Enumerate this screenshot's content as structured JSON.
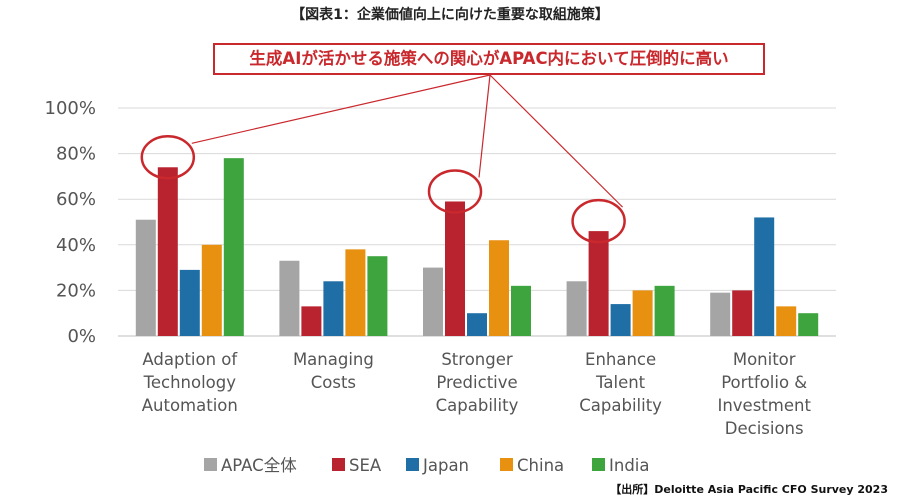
{
  "title": "【図表1：企業価値向上に向けた重要な取組施策】",
  "callout": "生成AIが活かせる施策への関心がAPAC内において圧倒的に高い",
  "source": "【出所】Deloitte Asia Pacific CFO Survey 2023",
  "colors": {
    "accent": "#c9282d",
    "APAC全体": "#a5a5a5",
    "SEA": "#b8232f",
    "Japan": "#1f6fa6",
    "China": "#e8900f",
    "India": "#3ea53e"
  },
  "chart_data": {
    "type": "bar",
    "title": "【図表1：企業価値向上に向けた重要な取組施策】",
    "categories": [
      [
        "Adaption of",
        "Technology",
        "Automation"
      ],
      [
        "Managing",
        "Costs"
      ],
      [
        "Stronger",
        "Predictive",
        "Capability"
      ],
      [
        "Enhance",
        "Talent",
        "Capability"
      ],
      [
        "Monitor",
        "Portfolio &",
        "Investment",
        "Decisions"
      ]
    ],
    "series": [
      {
        "name": "APAC全体",
        "values": [
          51,
          33,
          30,
          24,
          19
        ]
      },
      {
        "name": "SEA",
        "values": [
          74,
          13,
          59,
          46,
          20
        ]
      },
      {
        "name": "Japan",
        "values": [
          29,
          24,
          10,
          14,
          52
        ]
      },
      {
        "name": "China",
        "values": [
          40,
          38,
          42,
          20,
          13
        ]
      },
      {
        "name": "India",
        "values": [
          78,
          35,
          22,
          22,
          10
        ]
      }
    ],
    "ylim": [
      0,
      100
    ],
    "yticks": [
      "0%",
      "20%",
      "40%",
      "60%",
      "80%",
      "100%"
    ],
    "grid": true,
    "legend": "bottom",
    "highlighted": [
      {
        "category": 0,
        "series": "SEA"
      },
      {
        "category": 2,
        "series": "SEA"
      },
      {
        "category": 3,
        "series": "SEA"
      }
    ]
  }
}
